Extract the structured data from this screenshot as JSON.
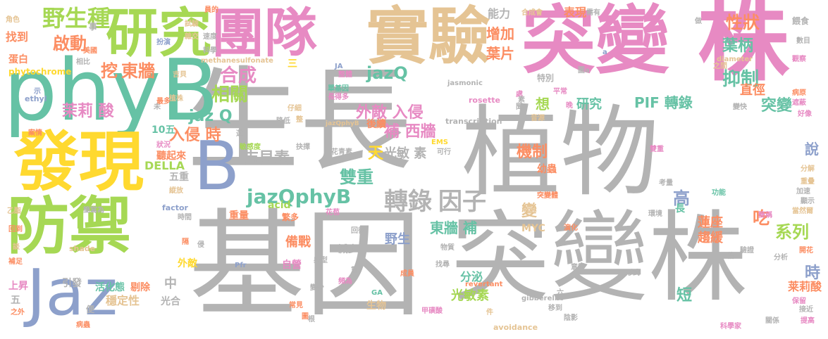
{
  "palette": {
    "gray": "#b3b3b3",
    "pink": "#e78ac3",
    "green": "#66c2a5",
    "blue": "#8da0cb",
    "yellow": "#ffd92f",
    "lime": "#a6d854",
    "orange": "#fc8d62",
    "tan": "#e5c494"
  },
  "words": [
    {
      "text": "生長",
      "color": "gray"
    },
    {
      "text": "植物",
      "color": "gray"
    },
    {
      "text": "基因",
      "color": "gray"
    },
    {
      "text": "突變株",
      "color": "gray"
    },
    {
      "text": "突變",
      "color": "pink"
    },
    {
      "text": "株",
      "color": "pink"
    },
    {
      "text": "phyB",
      "color": "green"
    },
    {
      "text": "研究",
      "color": "lime"
    },
    {
      "text": "團隊",
      "color": "pink"
    },
    {
      "text": "實驗",
      "color": "tan"
    },
    {
      "text": "發現",
      "color": "yellow"
    },
    {
      "text": "防禦",
      "color": "lime"
    },
    {
      "text": "Jaz",
      "color": "blue"
    },
    {
      "text": "B",
      "color": "blue"
    },
    {
      "text": "轉錄",
      "color": "gray"
    },
    {
      "text": "因子",
      "color": "gray"
    },
    {
      "text": "jazQphyB",
      "color": "green"
    },
    {
      "text": "野生種",
      "color": "lime"
    },
    {
      "text": "啟動",
      "color": "orange"
    },
    {
      "text": "挖",
      "color": "orange"
    },
    {
      "text": "東牆",
      "color": "orange"
    },
    {
      "text": "合成",
      "color": "pink"
    },
    {
      "text": "相關",
      "color": "lime"
    },
    {
      "text": "jaz Q",
      "color": "green"
    },
    {
      "text": "茉莉 酸",
      "color": "pink"
    },
    {
      "text": "入侵 時",
      "color": "orange"
    },
    {
      "text": "外敵 入侵",
      "color": "pink"
    },
    {
      "text": "jazQ",
      "color": "green"
    },
    {
      "text": "補 西牆",
      "color": "pink"
    },
    {
      "text": "吉貝素",
      "color": "gray"
    },
    {
      "text": "雙重",
      "color": "green"
    },
    {
      "text": "光敏 素",
      "color": "gray"
    },
    {
      "text": "天",
      "color": "yellow"
    },
    {
      "text": "機制",
      "color": "orange"
    },
    {
      "text": "PIF 轉錄",
      "color": "green"
    },
    {
      "text": "抑制",
      "color": "green"
    },
    {
      "text": "性狀",
      "color": "orange"
    },
    {
      "text": "葉柄",
      "color": "green"
    },
    {
      "text": "葉片",
      "color": "orange"
    },
    {
      "text": "增加",
      "color": "orange"
    },
    {
      "text": "能力",
      "color": "gray"
    },
    {
      "text": "表現",
      "color": "orange"
    },
    {
      "text": "研究",
      "color": "green"
    },
    {
      "text": "想",
      "color": "lime"
    },
    {
      "text": "突變",
      "color": "green"
    },
    {
      "text": "直徑",
      "color": "orange"
    },
    {
      "text": "高",
      "color": "blue"
    },
    {
      "text": "系列",
      "color": "lime"
    },
    {
      "text": "蓮座",
      "color": "orange"
    },
    {
      "text": "趨緩",
      "color": "orange"
    },
    {
      "text": "吃",
      "color": "orange"
    },
    {
      "text": "時",
      "color": "blue"
    },
    {
      "text": "說",
      "color": "blue"
    },
    {
      "text": "莱莉酸",
      "color": "orange"
    },
    {
      "text": "短",
      "color": "green"
    },
    {
      "text": "東牆 補",
      "color": "green"
    },
    {
      "text": "備戰",
      "color": "orange"
    },
    {
      "text": "光敏素",
      "color": "lime"
    },
    {
      "text": "分泌",
      "color": "green"
    },
    {
      "text": "野生",
      "color": "blue"
    },
    {
      "text": "生物",
      "color": "tan"
    },
    {
      "text": "MYC",
      "color": "tan"
    },
    {
      "text": "重量",
      "color": "orange"
    },
    {
      "text": "繁多",
      "color": "orange"
    },
    {
      "text": "自營",
      "color": "pink"
    },
    {
      "text": "acid",
      "color": "lime"
    },
    {
      "text": "變",
      "color": "tan"
    },
    {
      "text": "DELLA",
      "color": "lime"
    },
    {
      "text": "10五",
      "color": "green"
    },
    {
      "text": "聽起來",
      "color": "orange"
    },
    {
      "text": "五重",
      "color": "gray"
    },
    {
      "text": "上昇",
      "color": "pink"
    },
    {
      "text": "引發",
      "color": "gray"
    },
    {
      "text": "活化態",
      "color": "green"
    },
    {
      "text": "剔除",
      "color": "orange"
    },
    {
      "text": "穩定性",
      "color": "tan"
    },
    {
      "text": "光合",
      "color": "gray"
    },
    {
      "text": "中",
      "color": "gray"
    },
    {
      "text": "外敵",
      "color": "yellow"
    },
    {
      "text": "五",
      "color": "gray"
    },
    {
      "text": "找到",
      "color": "orange"
    },
    {
      "text": "蛋白",
      "color": "orange"
    },
    {
      "text": "phytochrome",
      "color": "yellow"
    },
    {
      "text": "ethyl",
      "color": "blue"
    },
    {
      "text": "methanesulfonate",
      "color": "tan"
    },
    {
      "text": "transcription",
      "color": "gray"
    },
    {
      "text": "jasmonic",
      "color": "gray"
    },
    {
      "text": "rosette",
      "color": "pink"
    },
    {
      "text": "factor",
      "color": "blue"
    },
    {
      "text": "shade",
      "color": "tan"
    },
    {
      "text": "avoidance",
      "color": "tan"
    },
    {
      "text": "gibberellic",
      "color": "gray"
    },
    {
      "text": "revertant",
      "color": "orange"
    },
    {
      "text": "diameter",
      "color": "tan"
    },
    {
      "text": "EMS",
      "color": "yellow"
    },
    {
      "text": "Pfr",
      "color": "blue"
    },
    {
      "text": "GA",
      "color": "green"
    },
    {
      "text": "JA",
      "color": "blue"
    },
    {
      "text": "jazQphyB",
      "color": "tan"
    },
    {
      "text": "事",
      "color": "gray"
    },
    {
      "text": "美國",
      "color": "orange"
    },
    {
      "text": "相比",
      "color": "gray"
    },
    {
      "text": "扮演",
      "color": "blue"
    },
    {
      "text": "科學",
      "color": "gray"
    },
    {
      "text": "速度",
      "color": "gray"
    },
    {
      "text": "員的",
      "color": "orange"
    },
    {
      "text": "試驗",
      "color": "tan"
    },
    {
      "text": "雜交",
      "color": "tan"
    },
    {
      "text": "角色",
      "color": "tan"
    },
    {
      "text": "吉貝",
      "color": "tan"
    },
    {
      "text": "植株",
      "color": "tan"
    },
    {
      "text": "最多",
      "color": "orange"
    },
    {
      "text": "三",
      "color": "yellow"
    },
    {
      "text": "整體",
      "color": "pink"
    },
    {
      "text": "單基因",
      "color": "green"
    },
    {
      "text": "長得多",
      "color": "pink"
    },
    {
      "text": "仔細",
      "color": "tan"
    },
    {
      "text": "降低",
      "color": "gray"
    },
    {
      "text": "整",
      "color": "tan"
    },
    {
      "text": "後續",
      "color": "orange"
    },
    {
      "text": "選",
      "color": "gray"
    },
    {
      "text": "敏感度",
      "color": "lime"
    },
    {
      "text": "抉擇",
      "color": "gray"
    },
    {
      "text": "花青素",
      "color": "gray"
    },
    {
      "text": "可行",
      "color": "gray"
    },
    {
      "text": "狀況",
      "color": "pink"
    },
    {
      "text": "案情",
      "color": "orange"
    },
    {
      "text": "縱放",
      "color": "tan"
    },
    {
      "text": "乙酯",
      "color": "tan"
    },
    {
      "text": "簡寫為",
      "color": "gray"
    },
    {
      "text": "時間",
      "color": "gray"
    },
    {
      "text": "回到",
      "color": "orange"
    },
    {
      "text": "談",
      "color": "tan"
    },
    {
      "text": "補足",
      "color": "orange"
    },
    {
      "text": "隔",
      "color": "orange"
    },
    {
      "text": "侵",
      "color": "gray"
    },
    {
      "text": "減少",
      "color": "gray"
    },
    {
      "text": "回復",
      "color": "gray"
    },
    {
      "text": "典型",
      "color": "gray"
    },
    {
      "text": "花苞",
      "color": "pink"
    },
    {
      "text": "根",
      "color": "gray"
    },
    {
      "text": "頻為",
      "color": "pink"
    },
    {
      "text": "重",
      "color": "gray"
    },
    {
      "text": "成員",
      "color": "orange"
    },
    {
      "text": "物質",
      "color": "gray"
    },
    {
      "text": "找尋",
      "color": "gray"
    },
    {
      "text": "變少",
      "color": "gray"
    },
    {
      "text": "常見",
      "color": "orange"
    },
    {
      "text": "甲磺酸",
      "color": "pink"
    },
    {
      "text": "件",
      "color": "tan"
    },
    {
      "text": "移到",
      "color": "gray"
    },
    {
      "text": "陰影",
      "color": "gray"
    },
    {
      "text": "演化",
      "color": "orange"
    },
    {
      "text": "環境",
      "color": "gray"
    },
    {
      "text": "形式",
      "color": "gray"
    },
    {
      "text": "意料",
      "color": "gray"
    },
    {
      "text": "幼蟲",
      "color": "orange"
    },
    {
      "text": "突變體",
      "color": "orange"
    },
    {
      "text": "考量",
      "color": "gray"
    },
    {
      "text": "功能",
      "color": "green"
    },
    {
      "text": "雙重",
      "color": "pink"
    },
    {
      "text": "之外",
      "color": "orange"
    },
    {
      "text": "病蟲",
      "color": "orange"
    },
    {
      "text": "便",
      "color": "gray"
    },
    {
      "text": "合成會",
      "color": "tan"
    },
    {
      "text": "需有",
      "color": "gray"
    },
    {
      "text": "做",
      "color": "gray"
    },
    {
      "text": "餵食",
      "color": "gray"
    },
    {
      "text": "數目",
      "color": "gray"
    },
    {
      "text": "觀察",
      "color": "pink"
    },
    {
      "text": "之間",
      "color": "tan"
    },
    {
      "text": "特別",
      "color": "gray"
    },
    {
      "text": "平常",
      "color": "pink"
    },
    {
      "text": "變快",
      "color": "gray"
    },
    {
      "text": "遮蔽",
      "color": "pink"
    },
    {
      "text": "好像",
      "color": "pink"
    },
    {
      "text": "病原",
      "color": "orange"
    },
    {
      "text": "晚",
      "color": "pink"
    },
    {
      "text": "音源",
      "color": "tan"
    },
    {
      "text": "分解",
      "color": "tan"
    },
    {
      "text": "重疊",
      "color": "tan"
    },
    {
      "text": "加速",
      "color": "gray"
    },
    {
      "text": "顯示",
      "color": "gray"
    },
    {
      "text": "當然爾",
      "color": "tan"
    },
    {
      "text": "開花",
      "color": "orange"
    },
    {
      "text": "分析",
      "color": "gray"
    },
    {
      "text": "驗證",
      "color": "gray"
    },
    {
      "text": "倍",
      "color": "gray"
    },
    {
      "text": "簡稱",
      "color": "pink"
    },
    {
      "text": "保留",
      "color": "pink"
    },
    {
      "text": "接近",
      "color": "gray"
    },
    {
      "text": "提高",
      "color": "pink"
    },
    {
      "text": "關係",
      "color": "gray"
    },
    {
      "text": "科學家",
      "color": "pink"
    },
    {
      "text": "處",
      "color": "pink"
    },
    {
      "text": "圖a",
      "color": "gray"
    },
    {
      "text": "圖",
      "color": "orange"
    },
    {
      "text": "六",
      "color": "gray"
    },
    {
      "text": "素",
      "color": "gray"
    },
    {
      "text": "a",
      "color": "blue"
    },
    {
      "text": "聞",
      "color": "gray"
    },
    {
      "text": "長",
      "color": "green"
    },
    {
      "text": "未",
      "color": "gray"
    },
    {
      "text": "示",
      "color": "blue"
    }
  ]
}
